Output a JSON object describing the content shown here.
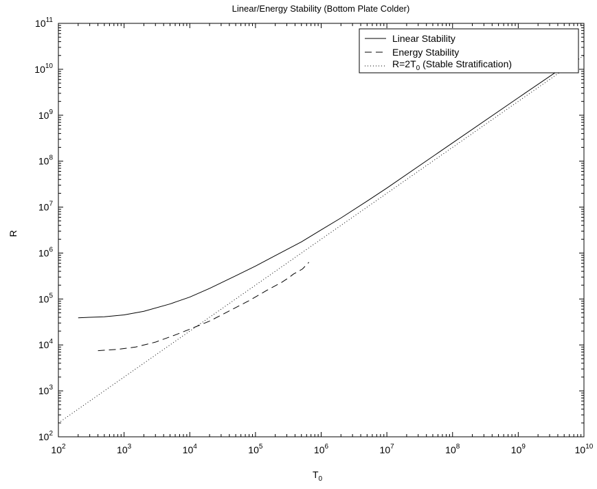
{
  "chart_data": {
    "type": "line",
    "title": "Linear/Energy Stability (Bottom Plate Colder)",
    "xlabel": {
      "base": "T",
      "sub": "0"
    },
    "ylabel": "R",
    "xscale": "log",
    "yscale": "log",
    "xlim": [
      100,
      10000000000
    ],
    "ylim": [
      100,
      100000000000
    ],
    "xticks": [
      {
        "value": 100,
        "base": "10",
        "exp": "2"
      },
      {
        "value": 1000,
        "base": "10",
        "exp": "3"
      },
      {
        "value": 10000,
        "base": "10",
        "exp": "4"
      },
      {
        "value": 100000,
        "base": "10",
        "exp": "5"
      },
      {
        "value": 1000000,
        "base": "10",
        "exp": "6"
      },
      {
        "value": 10000000,
        "base": "10",
        "exp": "7"
      },
      {
        "value": 100000000,
        "base": "10",
        "exp": "8"
      },
      {
        "value": 1000000000,
        "base": "10",
        "exp": "9"
      },
      {
        "value": 10000000000,
        "base": "10",
        "exp": "10"
      }
    ],
    "yticks": [
      {
        "value": 100,
        "base": "10",
        "exp": "2"
      },
      {
        "value": 1000,
        "base": "10",
        "exp": "3"
      },
      {
        "value": 10000,
        "base": "10",
        "exp": "4"
      },
      {
        "value": 100000,
        "base": "10",
        "exp": "5"
      },
      {
        "value": 1000000,
        "base": "10",
        "exp": "6"
      },
      {
        "value": 10000000,
        "base": "10",
        "exp": "7"
      },
      {
        "value": 100000000,
        "base": "10",
        "exp": "8"
      },
      {
        "value": 1000000000,
        "base": "10",
        "exp": "9"
      },
      {
        "value": 10000000000,
        "base": "10",
        "exp": "10"
      },
      {
        "value": 100000000000,
        "base": "10",
        "exp": "11"
      }
    ],
    "grid": false,
    "legend_position": "top-right",
    "series": [
      {
        "name": "Linear Stability",
        "dash": "solid",
        "color": "#000000",
        "x": [
          200,
          500,
          1000,
          2000,
          5000,
          10000,
          20000,
          50000,
          100000,
          200000,
          500000,
          1000000,
          2000000,
          5000000,
          10000000,
          100000000,
          1000000000,
          5000000000
        ],
        "y": [
          39000,
          41000,
          45000,
          54000,
          78000,
          110000,
          170000,
          320000,
          520000,
          880000,
          1750000,
          3200000,
          5800000,
          13500000,
          26000000,
          250000000,
          2400000000,
          11500000000
        ]
      },
      {
        "name": "Energy Stability",
        "dash": "dashed",
        "color": "#000000",
        "x": [
          400,
          800,
          1500,
          3000,
          6000,
          10000,
          20000,
          40000,
          80000,
          150000,
          250000,
          320000,
          380000,
          450000,
          520000,
          650000
        ],
        "y": [
          7500,
          8000,
          9000,
          11500,
          16500,
          22000,
          33000,
          55000,
          92000,
          155000,
          230000,
          290000,
          350000,
          400000,
          450000,
          630000
        ]
      },
      {
        "name": "R=2T",
        "name_sub": "0",
        "name_suffix": " (Stable Stratification)",
        "dash": "dotted",
        "color": "#000000",
        "x": [
          100,
          10000000000
        ],
        "y": [
          200,
          20000000000
        ]
      }
    ]
  }
}
